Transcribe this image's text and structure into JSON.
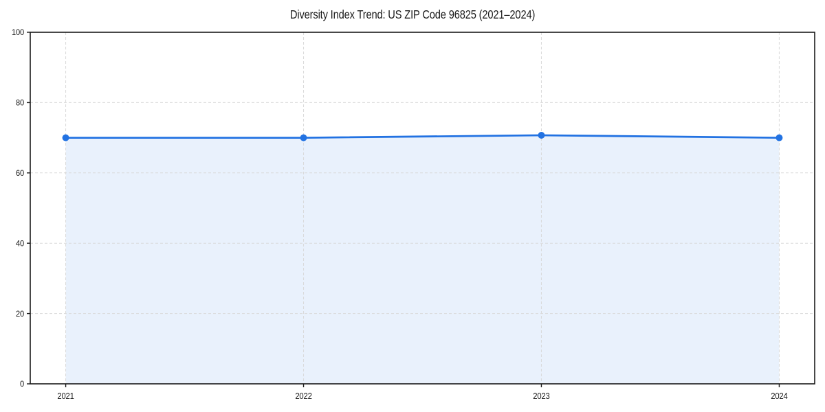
{
  "chart_data": {
    "type": "area",
    "title": "Diversity Index Trend: US ZIP Code 96825 (2021–2024)",
    "categories": [
      "2021",
      "2022",
      "2023",
      "2024"
    ],
    "series": [
      {
        "name": "Diversity Index",
        "values": [
          70,
          70,
          70.7,
          70
        ]
      }
    ],
    "xlabel": "",
    "ylabel": "",
    "ylim": [
      0,
      100
    ],
    "yticks": [
      0,
      20,
      40,
      60,
      80,
      100
    ],
    "grid": "dashed-both-axes",
    "legend": "none",
    "marker": "circle",
    "colors": {
      "line": "#2272e2",
      "marker": "#2272e2",
      "fill": "#e9f1fc",
      "grid": "#d9d9d9",
      "axis": "#1a1a1a",
      "background": "#ffffff"
    }
  }
}
